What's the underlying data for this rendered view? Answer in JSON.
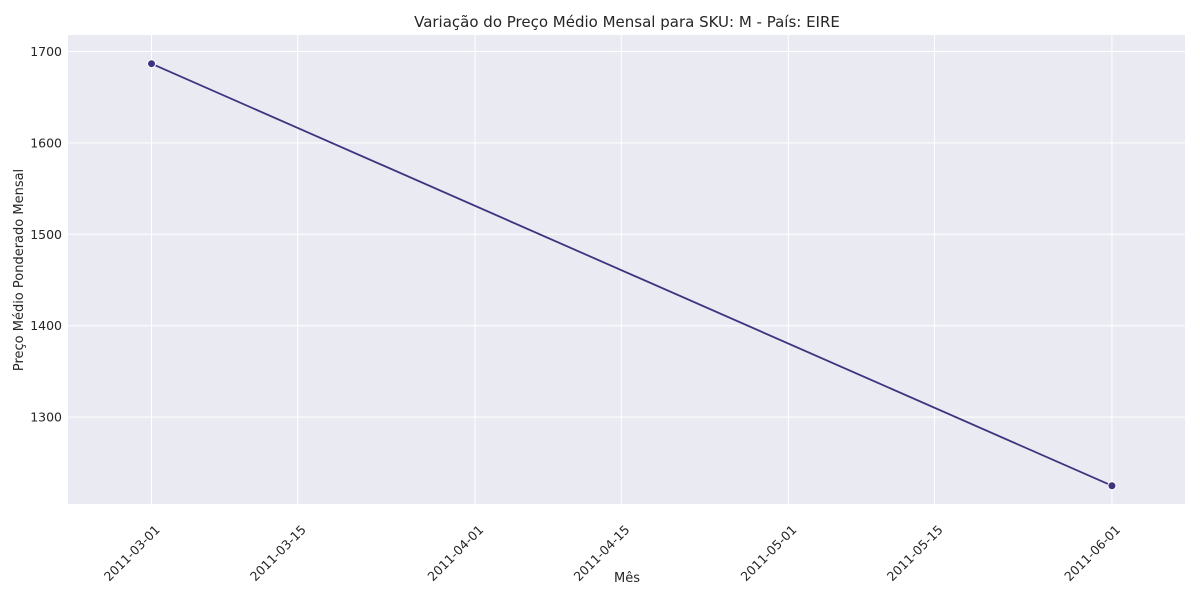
{
  "chart_data": {
    "type": "line",
    "title": "Variação do Preço Médio Mensal para SKU: M - País: EIRE",
    "xlabel": "Mês",
    "ylabel": "Preço Médio Ponderado Mensal",
    "x_type": "date",
    "xlim": [
      "2011-02-21",
      "2011-06-08"
    ],
    "ylim": [
      1205,
      1718
    ],
    "x_ticks": [
      "2011-03-01",
      "2011-03-15",
      "2011-04-01",
      "2011-04-15",
      "2011-05-01",
      "2011-05-15",
      "2011-06-01"
    ],
    "y_ticks": [
      1300,
      1400,
      1500,
      1600,
      1700
    ],
    "grid": true,
    "line_color": "#3f3380",
    "series": [
      {
        "x": [
          "2011-03-01",
          "2011-06-01"
        ],
        "y": [
          1686.6,
          1225.0
        ]
      }
    ]
  }
}
